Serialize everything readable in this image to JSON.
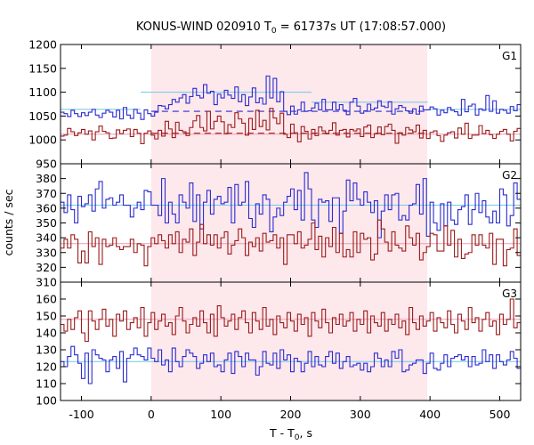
{
  "chart_data": {
    "type": "line",
    "title": {
      "prefix": "KONUS-WIND 020910 T",
      "subscript": "0",
      "suffix": " = 61737s UT (17:08:57.000)"
    },
    "xlabel": {
      "prefix": "T - T",
      "subscript": "0",
      "suffix": ", s"
    },
    "ylabel": "counts / sec",
    "xlim": [
      -130,
      530
    ],
    "xticks": [
      -100,
      0,
      100,
      200,
      300,
      400,
      500
    ],
    "bin_width_s": 5,
    "highlight_interval": [
      0,
      396
    ],
    "colors": {
      "blue": "#2b2bd0",
      "red": "#9b1b1b",
      "bg_blue": "#70c8ea",
      "bg_red": "#ec9cb0",
      "shade": "#fde8ec"
    },
    "panels": [
      {
        "label": "G1",
        "ylim": [
          950,
          1200
        ],
        "yticks": [
          950,
          1000,
          1050,
          1100,
          1150,
          1200
        ],
        "series": [
          {
            "color": "blue",
            "values": [
              1058,
              1055,
              1049,
              1062,
              1055,
              1049,
              1057,
              1051,
              1058,
              1064,
              1052,
              1047,
              1056,
              1062,
              1058,
              1048,
              1062,
              1044,
              1068,
              1052,
              1045,
              1064,
              1056,
              1043,
              1063,
              1055,
              1050,
              1058,
              1072,
              1071,
              1065,
              1074,
              1085,
              1079,
              1088,
              1095,
              1077,
              1091,
              1108,
              1093,
              1088,
              1116,
              1098,
              1102,
              1074,
              1096,
              1088,
              1104,
              1094,
              1087,
              1111,
              1080,
              1095,
              1072,
              1090,
              1109,
              1078,
              1088,
              1075,
              1134,
              1088,
              1129,
              1080,
              1101,
              1060,
              1053,
              1071,
              1054,
              1063,
              1079,
              1060,
              1061,
              1067,
              1077,
              1063,
              1085,
              1063,
              1063,
              1079,
              1063,
              1074,
              1062,
              1053,
              1079,
              1087,
              1071,
              1056,
              1061,
              1075,
              1063,
              1067,
              1082,
              1071,
              1068,
              1080,
              1054,
              1065,
              1072,
              1068,
              1061,
              1056,
              1065,
              1054,
              1071,
              1063,
              1063,
              1069,
              1065,
              1052,
              1062,
              1057,
              1068,
              1062,
              1059,
              1052,
              1085,
              1059,
              1071,
              1075,
              1052,
              1065,
              1062,
              1093,
              1060,
              1082,
              1056,
              1064,
              1062,
              1056,
              1070,
              1061,
              1074
            ]
          },
          {
            "color": "red",
            "values": [
              1008,
              1010,
              1024,
              1017,
              1009,
              1015,
              1022,
              1012,
              1019,
              1000,
              1017,
              1029,
              1018,
              1015,
              1003,
              1004,
              1021,
              1013,
              1020,
              1023,
              1007,
              1022,
              1014,
              992,
              1014,
              1019,
              1010,
              1002,
              1020,
              1008,
              1039,
              1023,
              1005,
              1037,
              1020,
              1017,
              1009,
              1026,
              1040,
              1051,
              1026,
              1019,
              1060,
              1023,
              1039,
              1050,
              1038,
              1013,
              1032,
              1026,
              1057,
              1044,
              1035,
              1010,
              1045,
              1022,
              1062,
              1028,
              1041,
              1021,
              1066,
              1046,
              1034,
              1056,
              1012,
              1005,
              1033,
              1015,
              996,
              1028,
              1018,
              1002,
              1022,
              1009,
              1027,
              1019,
              1013,
              1020,
              1036,
              1010,
              1020,
              1022,
              1006,
              1022,
              1019,
              1023,
              1007,
              1027,
              1031,
              1005,
              1013,
              1027,
              1011,
              1028,
              1033,
              1020,
              993,
              1015,
              1010,
              1026,
              1021,
              1017,
              1031,
              1004,
              1020,
              1003,
              1016,
              1019,
              1009,
              997,
              1010,
              1015,
              1017,
              1004,
              1025,
              1012,
              1035,
              1003,
              1010,
              1010,
              1030,
              1013,
              1020,
              1011,
              1003,
              1012,
              1018,
              1022,
              1012,
              998,
              1018,
              1024
            ]
          }
        ],
        "background_segments": [
          {
            "color": "bg_blue",
            "x": [
              -130,
              -15
            ],
            "y": 1064
          },
          {
            "color": "bg_blue",
            "x": [
              -15,
              230
            ],
            "y": 1100
          },
          {
            "color": "bg_blue",
            "x": [
              230,
              397
            ],
            "y": 1079
          },
          {
            "color": "bg_blue",
            "x": [
              397,
              530
            ],
            "y": 1064
          },
          {
            "color": "bg_red",
            "x": [
              -130,
              530
            ],
            "y": 1012
          }
        ],
        "dashed_levels": [
          {
            "color": "blue",
            "x": [
              0,
              396
            ],
            "y": 1060
          },
          {
            "color": "red",
            "x": [
              0,
              396
            ],
            "y": 1014
          }
        ]
      },
      {
        "label": "G2",
        "ylim": [
          310,
          390
        ],
        "yticks": [
          310,
          320,
          330,
          340,
          350,
          360,
          370,
          380
        ],
        "series": [
          {
            "color": "blue",
            "values": [
              364,
              357,
              369,
              359,
              350,
              368,
              361,
              363,
              369,
              358,
              373,
              378,
              360,
              366,
              367,
              362,
              364,
              369,
              362,
              362,
              354,
              360,
              364,
              359,
              372,
              371,
              362,
              362,
              355,
              380,
              350,
              364,
              356,
              350,
              369,
              364,
              360,
              377,
              351,
              369,
              346,
              364,
              372,
              356,
              366,
              368,
              363,
              364,
              374,
              350,
              376,
              362,
              364,
              378,
              353,
              347,
              363,
              356,
              369,
              366,
              344,
              354,
              360,
              355,
              364,
              368,
              373,
              359,
              372,
              352,
              384,
              373,
              352,
              347,
              366,
              364,
              365,
              351,
              367,
              367,
              343,
              358,
              379,
              365,
              377,
              366,
              362,
              371,
              364,
              357,
              365,
              340,
              358,
              369,
              359,
              369,
              370,
              352,
              355,
              352,
              362,
              363,
              376,
              356,
              380,
              341,
              364,
              350,
              345,
              363,
              348,
              364,
              352,
              349,
              359,
              361,
              369,
              349,
              359,
              370,
              357,
              365,
              354,
              350,
              358,
              350,
              373,
              369,
              348,
              355,
              377,
              366
            ]
          },
          {
            "color": "red",
            "values": [
              333,
              339,
              333,
              342,
              339,
              323,
              331,
              323,
              344,
              334,
              340,
              322,
              339,
              334,
              335,
              340,
              334,
              332,
              334,
              334,
              339,
              330,
              336,
              335,
              321,
              334,
              340,
              336,
              342,
              338,
              333,
              342,
              336,
              344,
              330,
              339,
              337,
              346,
              328,
              337,
              349,
              336,
              342,
              335,
              342,
              333,
              340,
              344,
              329,
              335,
              338,
              346,
              340,
              328,
              337,
              334,
              340,
              331,
              343,
              337,
              338,
              342,
              333,
              340,
              322,
              342,
              342,
              336,
              344,
              333,
              335,
              339,
              350,
              332,
              341,
              327,
              340,
              334,
              347,
              330,
              343,
              327,
              332,
              327,
              344,
              330,
              343,
              339,
              340,
              325,
              329,
              352,
              346,
              337,
              331,
              344,
              335,
              333,
              331,
              348,
              340,
              335,
              343,
              325,
              330,
              334,
              343,
              342,
              331,
              331,
              348,
              335,
              345,
              327,
              339,
              326,
              329,
              330,
              342,
              335,
              342,
              335,
              333,
              343,
              322,
              339,
              339,
              321,
              332,
              333,
              346,
              328
            ]
          }
        ],
        "background_segments": [
          {
            "color": "bg_blue",
            "x": [
              -130,
              530
            ],
            "y": 362
          },
          {
            "color": "bg_red",
            "x": [
              -130,
              530
            ],
            "y": 336
          }
        ],
        "dashed_levels": []
      },
      {
        "label": "G3",
        "ylim": [
          100,
          170
        ],
        "yticks": [
          100,
          110,
          120,
          130,
          140,
          150,
          160
        ],
        "series": [
          {
            "color": "blue",
            "values": [
              123,
              120,
              126,
              132,
              127,
              122,
              113,
              128,
              110,
              130,
              127,
              125,
              124,
              117,
              124,
              126,
              119,
              129,
              111,
              125,
              127,
              131,
              127,
              126,
              124,
              131,
              125,
              123,
              130,
              121,
              124,
              117,
              131,
              123,
              120,
              126,
              130,
              128,
              126,
              119,
              122,
              127,
              123,
              128,
              120,
              121,
              117,
              124,
              128,
              116,
              129,
              126,
              120,
              128,
              124,
              124,
              115,
              120,
              129,
              122,
              121,
              128,
              119,
              130,
              124,
              127,
              117,
              125,
              123,
              117,
              122,
              129,
              120,
              126,
              121,
              120,
              126,
              129,
              122,
              128,
              119,
              123,
              126,
              120,
              121,
              122,
              118,
              122,
              117,
              120,
              128,
              125,
              120,
              124,
              120,
              129,
              125,
              130,
              117,
              118,
              121,
              122,
              124,
              124,
              116,
              122,
              128,
              119,
              118,
              122,
              127,
              120,
              125,
              126,
              127,
              124,
              126,
              120,
              126,
              121,
              122,
              130,
              123,
              127,
              119,
              127,
              123,
              121,
              124,
              129,
              125,
              119
            ]
          },
          {
            "color": "red",
            "values": [
              145,
              141,
              148,
              142,
              149,
              153,
              140,
              135,
              153,
              147,
              142,
              148,
              154,
              144,
              148,
              138,
              151,
              147,
              153,
              142,
              146,
              149,
              143,
              155,
              138,
              146,
              152,
              142,
              147,
              151,
              144,
              146,
              139,
              150,
              155,
              147,
              140,
              145,
              149,
              144,
              153,
              146,
              140,
              151,
              138,
              156,
              149,
              144,
              147,
              151,
              142,
              149,
              153,
              146,
              140,
              152,
              147,
              142,
              155,
              144,
              148,
              139,
              150,
              146,
              143,
              152,
              147,
              141,
              151,
              145,
              149,
              138,
              152,
              147,
              143,
              154,
              146,
              140,
              149,
              145,
              151,
              144,
              147,
              152,
              141,
              148,
              145,
              153,
              140,
              150,
              146,
              144,
              152,
              141,
              148,
              145,
              151,
              143,
              147,
              139,
              155,
              146,
              142,
              150,
              144,
              147,
              152,
              141,
              149,
              146,
              143,
              153,
              145,
              140,
              151,
              147,
              142,
              155,
              146,
              149,
              141,
              148,
              152,
              144,
              147,
              139,
              151,
              145,
              148,
              160,
              143,
              146
            ]
          }
        ],
        "background_segments": [
          {
            "color": "bg_blue",
            "x": [
              -130,
              530
            ],
            "y": 123
          },
          {
            "color": "bg_red",
            "x": [
              -130,
              530
            ],
            "y": 148
          }
        ],
        "dashed_levels": []
      }
    ]
  }
}
